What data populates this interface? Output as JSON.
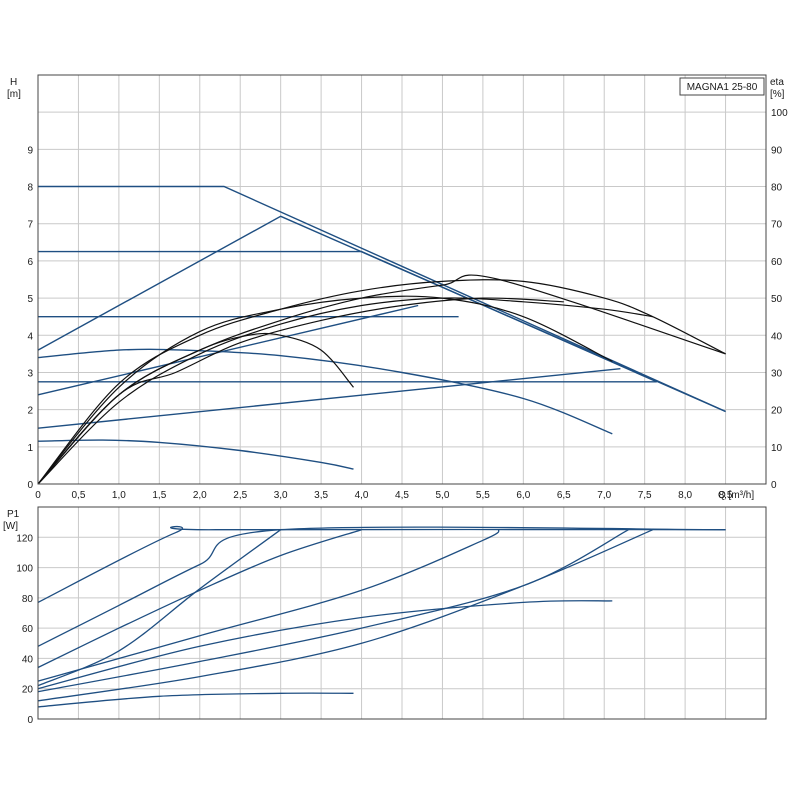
{
  "chart_data": [
    {
      "type": "line",
      "title": "MAGNA1 25-80",
      "ylabel_left": [
        "H",
        "[m]"
      ],
      "ylabel_right": [
        "eta",
        "[%]"
      ],
      "xlabel": "Q [m³/h]",
      "xlim": [
        0,
        9.0
      ],
      "ylim_left": [
        0,
        11
      ],
      "ylim_right": [
        0,
        110
      ],
      "x_ticks": [
        "0",
        "0,5",
        "1,0",
        "1,5",
        "2,0",
        "2,5",
        "3,0",
        "3,5",
        "4,0",
        "4,5",
        "5,0",
        "5,5",
        "6,0",
        "6,5",
        "7,0",
        "7,5",
        "8,0",
        "8,5"
      ],
      "y_ticks_left": [
        "0",
        "1",
        "2",
        "3",
        "4",
        "5",
        "6",
        "7",
        "8",
        "9"
      ],
      "y_ticks_right": [
        "0",
        "10",
        "20",
        "30",
        "40",
        "50",
        "60",
        "70",
        "80",
        "90",
        "100"
      ],
      "grid": true,
      "head_curves": [
        {
          "x": [
            0,
            2.3,
            8.5
          ],
          "y": [
            8.0,
            8.0,
            1.95
          ]
        },
        {
          "x": [
            0,
            4.0,
            7.65
          ],
          "y": [
            6.25,
            6.25,
            2.75
          ]
        },
        {
          "x": [
            0,
            5.2
          ],
          "y": [
            4.5,
            4.5
          ]
        },
        {
          "x": [
            0,
            7.65
          ],
          "y": [
            2.75,
            2.75
          ]
        },
        {
          "x": [
            0,
            3.0,
            8.5
          ],
          "y": [
            3.6,
            7.2,
            1.95
          ]
        },
        {
          "x": [
            0,
            4.7
          ],
          "y": [
            2.4,
            4.8
          ]
        },
        {
          "x": [
            0,
            7.2
          ],
          "y": [
            1.5,
            3.1
          ]
        },
        {
          "x": [
            0,
            1.0,
            1.8,
            3.0,
            4.5,
            6.0,
            7.1
          ],
          "y": [
            3.4,
            3.6,
            3.6,
            3.45,
            3.0,
            2.3,
            1.35
          ]
        },
        {
          "x": [
            0,
            0.8,
            1.5,
            2.5,
            3.5,
            3.9
          ],
          "y": [
            1.15,
            1.18,
            1.12,
            0.9,
            0.58,
            0.4
          ]
        }
      ],
      "efficiency_curves": [
        {
          "x": [
            0,
            1,
            2,
            3,
            4,
            5,
            6,
            7,
            7.6,
            8.5
          ],
          "y": [
            0,
            27,
            40,
            47,
            52,
            54.5,
            54.5,
            50,
            45,
            35
          ]
        },
        {
          "x": [
            0,
            1,
            2,
            3,
            4,
            5,
            5.7,
            8.5
          ],
          "y": [
            0,
            24,
            36,
            44,
            50,
            53.5,
            55,
            35
          ]
        },
        {
          "x": [
            0,
            1,
            2,
            3,
            4,
            5,
            6,
            7.1
          ],
          "y": [
            0,
            26,
            41,
            47,
            50,
            50,
            45,
            33
          ]
        },
        {
          "x": [
            0,
            1,
            2,
            3,
            4,
            5,
            6,
            7,
            7.6
          ],
          "y": [
            0,
            22,
            35,
            43,
            48,
            50,
            49,
            47,
            45
          ]
        },
        {
          "x": [
            0,
            1,
            2,
            2.6,
            3,
            3.5,
            3.9
          ],
          "y": [
            0,
            24,
            36,
            40,
            40,
            36,
            26
          ]
        },
        {
          "x": [
            0,
            1,
            1.7,
            2.5,
            3.5,
            4.5,
            5.5,
            6.5
          ],
          "y": [
            0,
            24,
            30,
            38,
            44,
            48,
            50,
            49
          ]
        }
      ]
    },
    {
      "type": "line",
      "ylabel": [
        "P1",
        "[W]"
      ],
      "xlim": [
        0,
        9.0
      ],
      "ylim": [
        0,
        140
      ],
      "y_ticks": [
        "0",
        "20",
        "40",
        "60",
        "80",
        "100",
        "120"
      ],
      "grid": true,
      "power_curves": [
        {
          "x": [
            0,
            1.7,
            2.2,
            8.5
          ],
          "y": [
            77,
            123,
            125,
            125
          ]
        },
        {
          "x": [
            0,
            1.0,
            2.0,
            3.0,
            8.5
          ],
          "y": [
            48,
            75,
            102,
            125,
            125
          ]
        },
        {
          "x": [
            0,
            1.0,
            2.0,
            3.0,
            4.0
          ],
          "y": [
            34,
            60,
            85,
            108,
            125
          ]
        },
        {
          "x": [
            0,
            1.0,
            2.0,
            3.0
          ],
          "y": [
            22,
            45,
            86,
            125
          ]
        },
        {
          "x": [
            0,
            2.0,
            4.0,
            5.5,
            5.7
          ],
          "y": [
            25,
            55,
            85,
            118,
            125
          ]
        },
        {
          "x": [
            0,
            2.0,
            4.0,
            6.0,
            7.3
          ],
          "y": [
            18,
            38,
            60,
            88,
            125
          ]
        },
        {
          "x": [
            0,
            2.0,
            4.0,
            6.0,
            7.6
          ],
          "y": [
            12,
            28,
            50,
            88,
            125
          ]
        },
        {
          "x": [
            0,
            2.0,
            4.0,
            6.0,
            7.1
          ],
          "y": [
            20,
            48,
            67,
            77,
            78
          ]
        },
        {
          "x": [
            0,
            1.5,
            3.0,
            3.9
          ],
          "y": [
            8,
            15,
            17,
            17
          ]
        }
      ]
    }
  ]
}
